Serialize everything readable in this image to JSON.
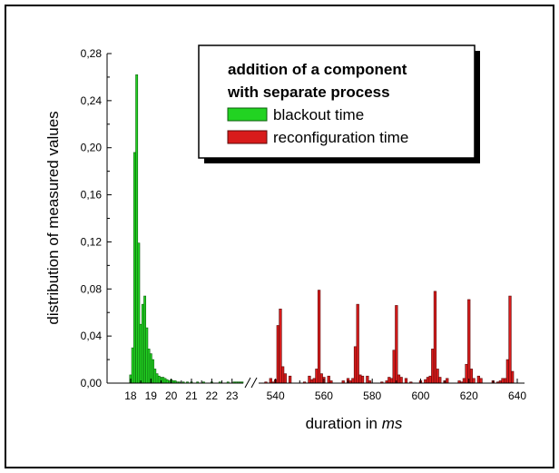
{
  "colors": {
    "blackout": "#22d322",
    "blackout_stroke": "#0b5d0b",
    "reconfiguration": "#d81b1b",
    "reconfiguration_stroke": "#5a0a0a"
  },
  "chart_data": {
    "type": "bar",
    "xlabel_prefix": "duration in ",
    "xlabel_unit": "ms",
    "ylabel": "distribution of measured values",
    "ylim": [
      0,
      0.28
    ],
    "y_ticks": [
      "0,00",
      "0,04",
      "0,08",
      "0,12",
      "0,16",
      "0,20",
      "0,24",
      "0,28"
    ],
    "y_tick_values": [
      0,
      0.04,
      0.08,
      0.12,
      0.16,
      0.2,
      0.24,
      0.28
    ],
    "axis_break": true,
    "x_segments": [
      {
        "xlim": [
          17.6,
          23.55
        ],
        "ticks": [
          "18",
          "19",
          "20",
          "21",
          "22",
          "23"
        ],
        "tick_values": [
          18,
          19,
          20,
          21,
          22,
          23
        ]
      },
      {
        "xlim": [
          533,
          643
        ],
        "ticks": [
          "540",
          "560",
          "580",
          "600",
          "620",
          "640"
        ],
        "tick_values": [
          540,
          560,
          580,
          600,
          620,
          640
        ]
      }
    ],
    "legend": {
      "title_line1": "addition of a component",
      "title_line2": "with separate process",
      "placement": "top-right"
    },
    "series": [
      {
        "name": "blackout time",
        "segment": 0,
        "bin_width": 0.1,
        "x": [
          18.0,
          18.1,
          18.2,
          18.3,
          18.4,
          18.5,
          18.6,
          18.7,
          18.8,
          18.9,
          19.0,
          19.1,
          19.2,
          19.3,
          19.4,
          19.5,
          19.6,
          19.7,
          19.8,
          19.9,
          20.0,
          20.1,
          20.2,
          20.3,
          20.4,
          20.6,
          20.8,
          21.0,
          21.3,
          21.6,
          22.0,
          22.4,
          22.8,
          23.1,
          23.2,
          23.3,
          23.4,
          23.5
        ],
        "values": [
          0.007,
          0.03,
          0.196,
          0.262,
          0.119,
          0.05,
          0.067,
          0.074,
          0.047,
          0.029,
          0.025,
          0.02,
          0.012,
          0.008,
          0.006,
          0.005,
          0.005,
          0.004,
          0.003,
          0.002,
          0.003,
          0.002,
          0.002,
          0.001,
          0.001,
          0.001,
          0.001,
          0.001,
          0.001,
          0.001,
          0.001,
          0.001,
          0.001,
          0.001,
          0.001,
          0.001,
          0.001,
          0.001
        ]
      },
      {
        "name": "reconfiguration time",
        "segment": 1,
        "bin_width": 1,
        "x": [
          536,
          538,
          539,
          540,
          541,
          542,
          543,
          544,
          546,
          552,
          554,
          555,
          556,
          557,
          558,
          559,
          560,
          562,
          563,
          568,
          570,
          571,
          572,
          573,
          574,
          575,
          576,
          578,
          579,
          584,
          586,
          587,
          588,
          589,
          590,
          591,
          592,
          594,
          596,
          600,
          602,
          603,
          604,
          605,
          606,
          607,
          608,
          610,
          611,
          616,
          617,
          618,
          619,
          620,
          621,
          622,
          624,
          625,
          630,
          632,
          633,
          634,
          635,
          636,
          637,
          638
        ],
        "values": [
          0.001,
          0.004,
          0.001,
          0.003,
          0.049,
          0.063,
          0.014,
          0.008,
          0.006,
          0.001,
          0.006,
          0.003,
          0.004,
          0.012,
          0.079,
          0.008,
          0.005,
          0.006,
          0.002,
          0.002,
          0.004,
          0.002,
          0.004,
          0.031,
          0.067,
          0.007,
          0.006,
          0.006,
          0.002,
          0.001,
          0.002,
          0.005,
          0.004,
          0.028,
          0.066,
          0.007,
          0.005,
          0.004,
          0.001,
          0.002,
          0.003,
          0.005,
          0.006,
          0.029,
          0.078,
          0.012,
          0.005,
          0.002,
          0.004,
          0.002,
          0.001,
          0.004,
          0.016,
          0.071,
          0.012,
          0.004,
          0.006,
          0.004,
          0.002,
          0.001,
          0.002,
          0.004,
          0.004,
          0.02,
          0.074,
          0.01
        ]
      }
    ]
  }
}
